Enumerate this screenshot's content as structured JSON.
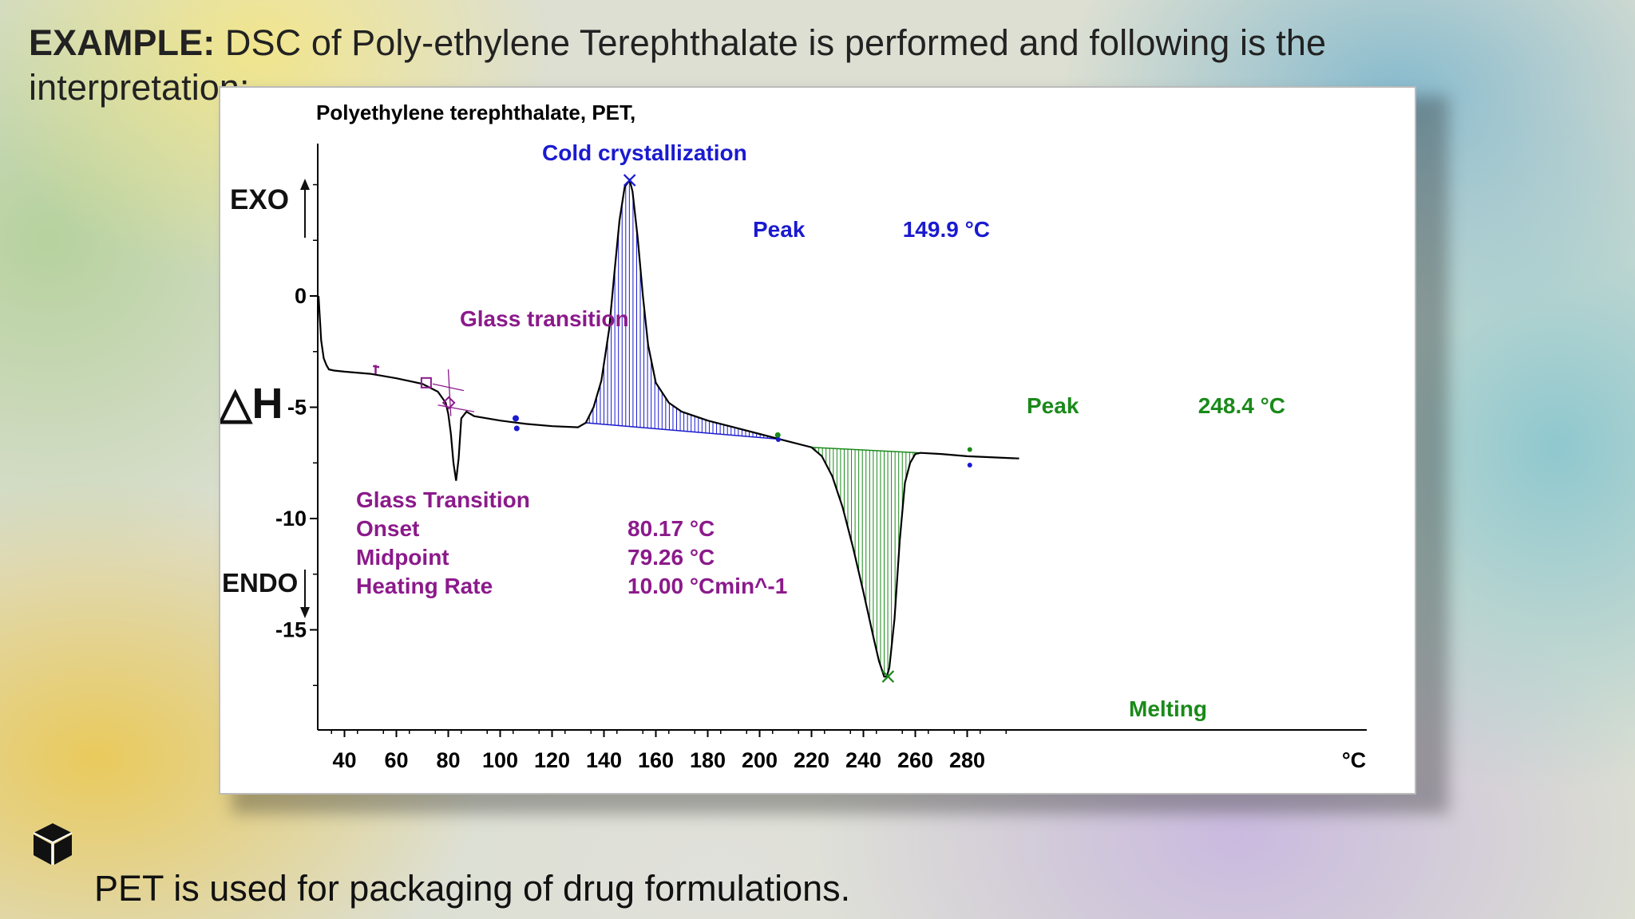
{
  "slide": {
    "title_bold": "EXAMPLE:",
    "title_rest": " DSC of Poly-ethylene Terephthalate is performed and following is the interpretation:",
    "caption": "PET is used for packaging of drug formulations.",
    "logo_icon": "cube-icon"
  },
  "chart_data": {
    "type": "line",
    "title": "Polyethylene terephthalate, PET,",
    "xlabel": "°C",
    "ylabel_exo": "EXO",
    "ylabel_endo": "ENDO",
    "ylabel": "△H",
    "xlim": [
      30,
      300
    ],
    "ylim": [
      -19.5,
      7
    ],
    "x_ticks": [
      40,
      60,
      80,
      100,
      120,
      140,
      160,
      180,
      200,
      220,
      240,
      260,
      280
    ],
    "y_ticks": [
      0,
      -5,
      -10,
      -15
    ],
    "series": [
      {
        "x": [
          30,
          31,
          32,
          33,
          34,
          36,
          40,
          50,
          60,
          70,
          76,
          79,
          80,
          81,
          82,
          83,
          84,
          85,
          87,
          90,
          100,
          110,
          120,
          130,
          133,
          136,
          139,
          142,
          144,
          146,
          148,
          149.9,
          151,
          153,
          155,
          157,
          160,
          165,
          170,
          180,
          190,
          200,
          210,
          220,
          224,
          228,
          232,
          236,
          240,
          244,
          246,
          248,
          249,
          250,
          252,
          254,
          256,
          258,
          260,
          262,
          270,
          280,
          300
        ],
        "y": [
          0,
          -2,
          -2.8,
          -3.1,
          -3.3,
          -3.35,
          -3.4,
          -3.5,
          -3.7,
          -3.95,
          -4.3,
          -4.8,
          -5.3,
          -6.2,
          -7.5,
          -8.3,
          -7.3,
          -5.5,
          -5.2,
          -5.4,
          -5.6,
          -5.75,
          -5.85,
          -5.9,
          -5.7,
          -5.0,
          -3.8,
          -1.5,
          1.0,
          3.4,
          4.9,
          5.2,
          4.7,
          2.6,
          0.0,
          -2.2,
          -3.9,
          -4.8,
          -5.2,
          -5.6,
          -5.9,
          -6.2,
          -6.5,
          -6.8,
          -7.2,
          -8.1,
          -9.5,
          -11.3,
          -13.3,
          -15.4,
          -16.4,
          -17.1,
          -17.1,
          -16.7,
          -14.5,
          -11.0,
          -8.4,
          -7.5,
          -7.1,
          -7.05,
          -7.1,
          -7.2,
          -7.3
        ]
      }
    ],
    "annotations": {
      "cold_crystallization": "Cold crystallization",
      "peak1_label": "Peak",
      "peak1_value": "149.9 °C",
      "glass_transition": "Glass transition",
      "peak2_label": "Peak",
      "peak2_value": "248.4 °C",
      "melting": "Melting",
      "gt_block": {
        "heading": "Glass Transition",
        "onset_label": "Onset",
        "onset_value": "80.17 °C",
        "midpoint_label": "Midpoint",
        "midpoint_value": "79.26 °C",
        "rate_label": "Heating Rate",
        "rate_value": "10.00 °Cmin^-1"
      }
    },
    "colors": {
      "curve": "#000000",
      "crystallization": "#1a1ad0",
      "glass": "#8b1a8b",
      "melting": "#1a8a1a"
    }
  }
}
